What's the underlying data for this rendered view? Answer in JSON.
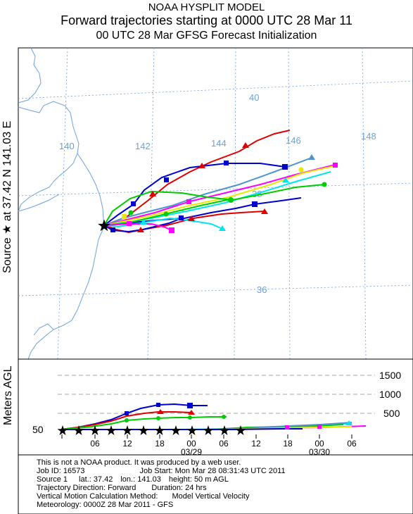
{
  "header": {
    "line1": "NOAA HYSPLIT MODEL",
    "line2": "Forward trajectories starting at 0000 UTC 28 Mar 11",
    "line3": "00 UTC 28 Mar    GFSG  Forecast Initialization"
  },
  "side_label": "Source ★ at   37.42 N   141.03 E",
  "height_axis_label": "Meters AGL",
  "map": {
    "lon_labels": [
      "140",
      "142",
      "144",
      "146",
      "148"
    ],
    "lat_labels": [
      "40",
      "38",
      "36"
    ],
    "source": {
      "lat": 37.42,
      "lon": 141.03
    }
  },
  "height_panel": {
    "tick_labels": [
      "1500",
      "1000",
      "500",
      "50"
    ],
    "time_labels": [
      "06",
      "12",
      "18",
      "00",
      "06",
      "12",
      "18",
      "00",
      "06"
    ],
    "date_labels": [
      "03/29",
      "03/30"
    ]
  },
  "colors": {
    "red": "#e00000",
    "blue": "#0000cc",
    "green": "#00cc00",
    "cyan": "#00e5ee",
    "magenta": "#ff00ff",
    "yellow": "#e8e800",
    "steelblue": "#4f94cd",
    "map": "#6ca0dc"
  },
  "footer": {
    "line1": "This is not a NOAA product. It was produced by a web user.",
    "job_id": "Job ID: 16573",
    "job_start": "Job Start: Mon Mar 28 08:31:43 UTC 2011",
    "source": "Source 1",
    "lat": "lat.: 37.42",
    "lon": "lon.: 141.03",
    "height": "height: 50 m AGL",
    "direction": "Trajectory Direction: Forward",
    "duration": "Duration: 24 hrs",
    "vertical_method": "Vertical Motion Calculation Method:",
    "vertical_value": "Model Vertical Velocity",
    "meteorology": "Meteorology: 0000Z 28 Mar 2011 - GFS"
  }
}
